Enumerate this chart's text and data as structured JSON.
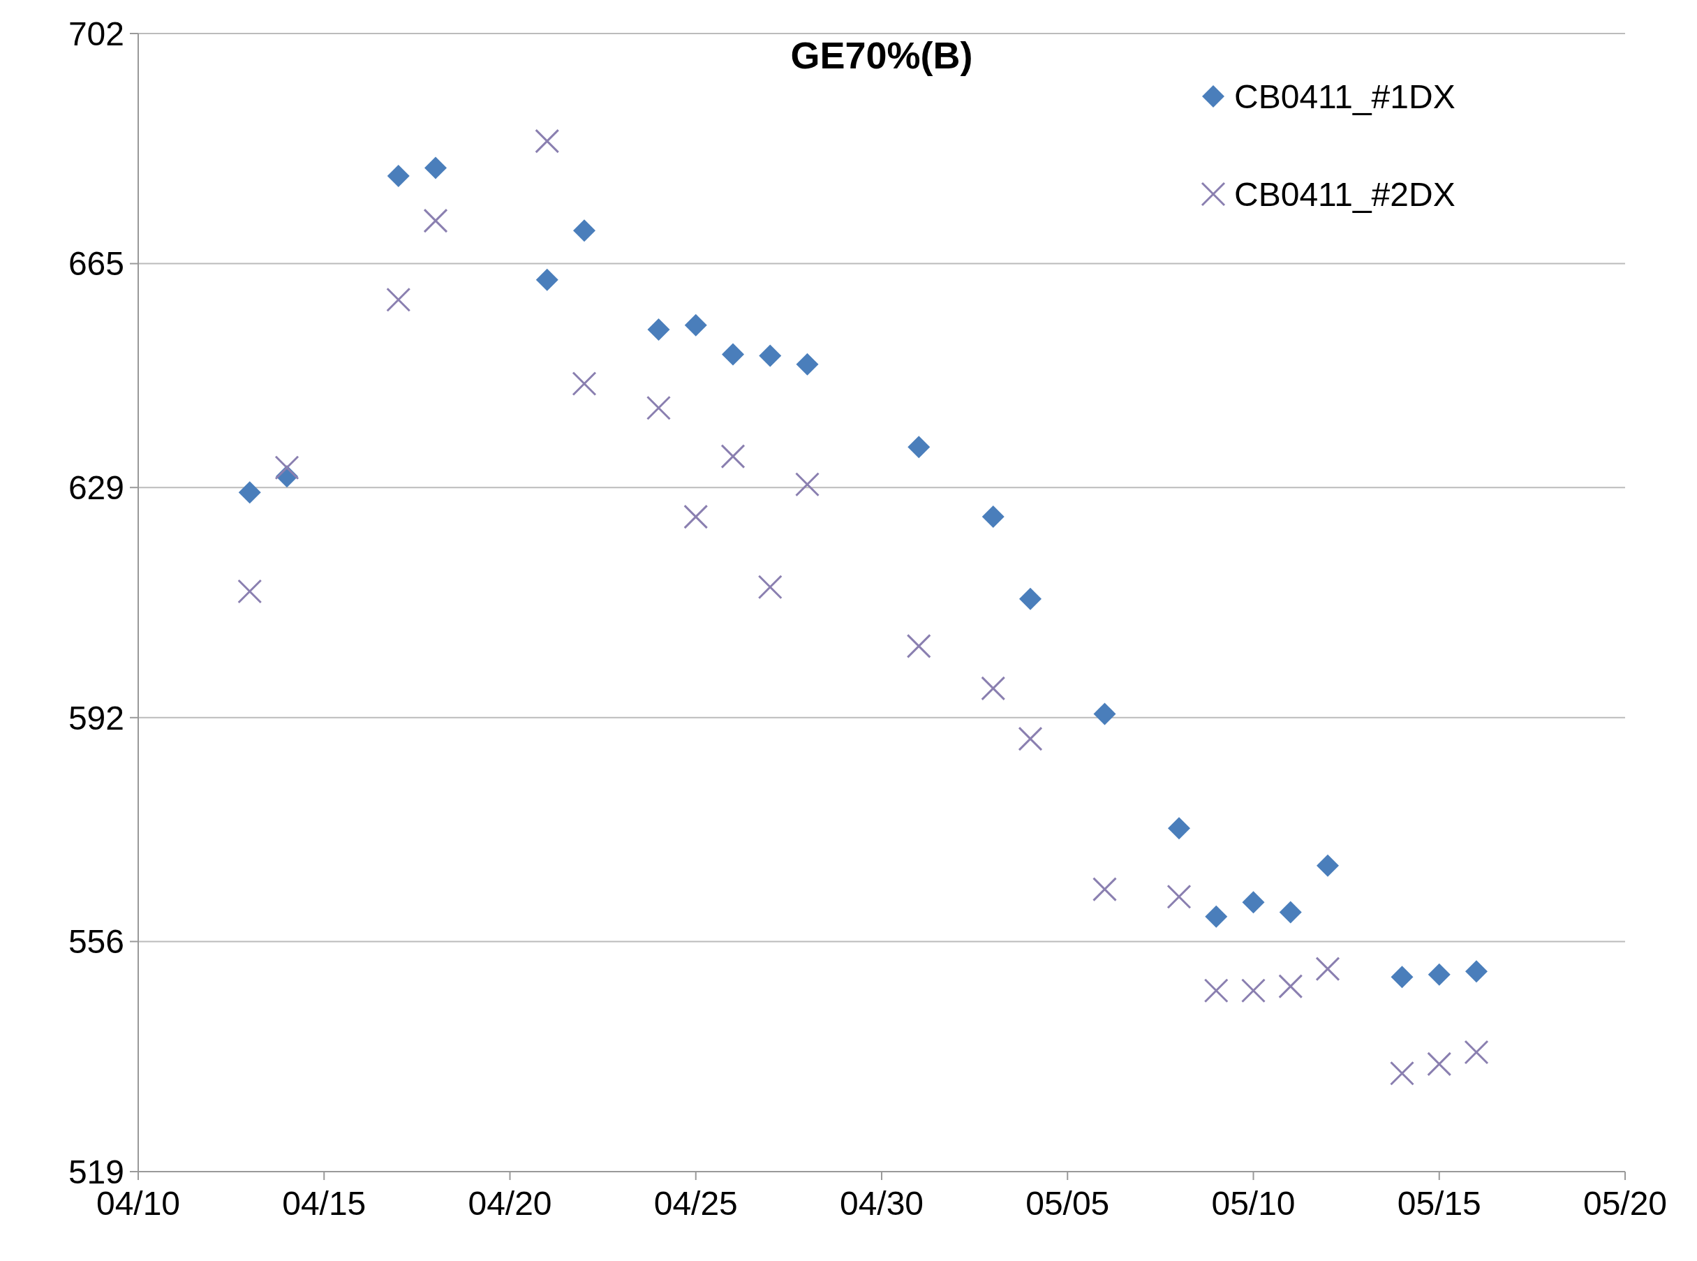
{
  "chart_data": {
    "type": "scatter",
    "title": "GE70%(B)",
    "x": [
      "--04-13",
      "--04-14",
      "--04-17",
      "--04-18",
      "--04-21",
      "--04-22",
      "--04-24",
      "--04-25",
      "--04-26",
      "--04-27",
      "--04-28",
      "--05-01",
      "--05-03",
      "--05-04",
      "--05-06",
      "--05-08",
      "--05-09",
      "--05-10",
      "--05-11",
      "--05-12",
      "--05-14",
      "--05-15",
      "--05-16"
    ],
    "series": [
      {
        "name": "CB0411_#1DX",
        "color": "#4a7ebb",
        "marker": "diamond",
        "values": [
          628.2,
          630.8,
          679.1,
          680.4,
          662.4,
          670.3,
          654.4,
          655.1,
          650.4,
          650.2,
          648.8,
          635.5,
          624.3,
          611.1,
          592.6,
          574.2,
          560.0,
          562.3,
          560.7,
          568.2,
          550.3,
          550.7,
          551.2
        ]
      },
      {
        "name": "CB0411_#2DX",
        "color": "#8a7fb0",
        "marker": "cross",
        "values": [
          612.3,
          632.2,
          659.2,
          671.9,
          684.7,
          645.7,
          641.8,
          624.3,
          634.0,
          613.0,
          629.5,
          603.5,
          596.7,
          588.6,
          564.4,
          563.2,
          548.1,
          548.1,
          548.8,
          551.6,
          534.8,
          536.3,
          538.2
        ]
      }
    ],
    "xlim": [
      "--04-10",
      "--05-20"
    ],
    "xticks": [
      {
        "value": "--04-10",
        "label": "04/10"
      },
      {
        "value": "--04-15",
        "label": "04/15"
      },
      {
        "value": "--04-20",
        "label": "04/20"
      },
      {
        "value": "--04-25",
        "label": "04/25"
      },
      {
        "value": "--04-30",
        "label": "04/30"
      },
      {
        "value": "--05-05",
        "label": "05/05"
      },
      {
        "value": "--05-10",
        "label": "05/10"
      },
      {
        "value": "--05-15",
        "label": "05/15"
      },
      {
        "value": "--05-20",
        "label": "05/20"
      }
    ],
    "ylim": [
      519,
      702
    ],
    "yticks": [
      519,
      556,
      592,
      629,
      665,
      702
    ],
    "grid": "y",
    "legend": "top right"
  }
}
